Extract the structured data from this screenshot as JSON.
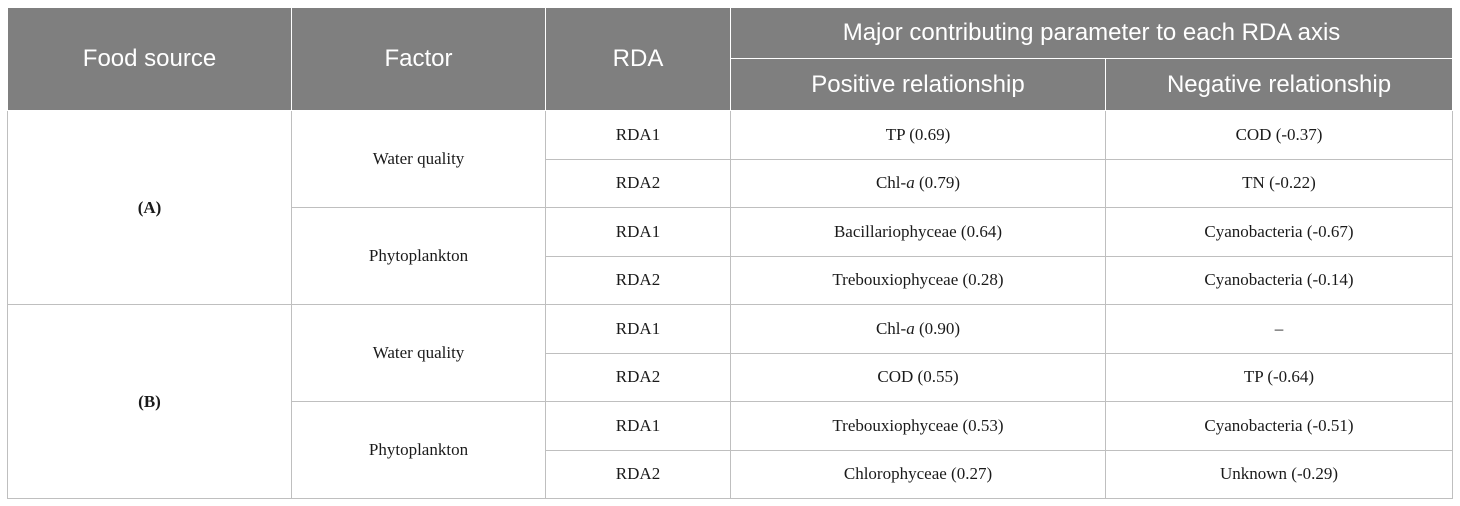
{
  "header": {
    "food_source": "Food source",
    "factor": "Factor",
    "rda": "RDA",
    "major": "Major contributing parameter to each RDA axis",
    "positive": "Positive relationship",
    "negative": "Negative relationship"
  },
  "groups": [
    {
      "label": "(A)",
      "factors": [
        {
          "name": "Water quality",
          "rows": [
            {
              "rda": "RDA1",
              "pos_main": "TP (0.69)",
              "pos_italic": "",
              "pos_tail": "",
              "neg": "COD (-0.37)"
            },
            {
              "rda": "RDA2",
              "pos_main": "Chl-",
              "pos_italic": "a",
              "pos_tail": " (0.79)",
              "neg": "TN (-0.22)"
            }
          ]
        },
        {
          "name": "Phytoplankton",
          "rows": [
            {
              "rda": "RDA1",
              "pos_main": "Bacillariophyceae (0.64)",
              "pos_italic": "",
              "pos_tail": "",
              "neg": "Cyanobacteria (-0.67)"
            },
            {
              "rda": "RDA2",
              "pos_main": "Trebouxiophyceae (0.28)",
              "pos_italic": "",
              "pos_tail": "",
              "neg": "Cyanobacteria (-0.14)"
            }
          ]
        }
      ]
    },
    {
      "label": "(B)",
      "factors": [
        {
          "name": "Water quality",
          "rows": [
            {
              "rda": "RDA1",
              "pos_main": "Chl-",
              "pos_italic": "a",
              "pos_tail": " (0.90)",
              "neg": "–"
            },
            {
              "rda": "RDA2",
              "pos_main": "COD (0.55)",
              "pos_italic": "",
              "pos_tail": "",
              "neg": "TP (-0.64)"
            }
          ]
        },
        {
          "name": "Phytoplankton",
          "rows": [
            {
              "rda": "RDA1",
              "pos_main": "Trebouxiophyceae (0.53)",
              "pos_italic": "",
              "pos_tail": "",
              "neg": "Cyanobacteria (-0.51)"
            },
            {
              "rda": "RDA2",
              "pos_main": "Chlorophyceae (0.27)",
              "pos_italic": "",
              "pos_tail": "",
              "neg": "Unknown (-0.29)"
            }
          ]
        }
      ]
    }
  ]
}
